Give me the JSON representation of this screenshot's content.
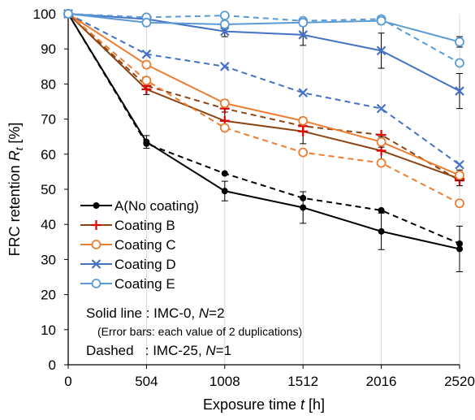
{
  "chart_data": {
    "type": "line",
    "xlabel": "Exposure time",
    "xlabel_var": "t",
    "xlabel_unit": "[h]",
    "ylabel": "FRC retention",
    "ylabel_var": "R",
    "ylabel_sub": "t",
    "ylabel_unit": "[%]",
    "xlim": [
      0,
      2520
    ],
    "ylim": [
      0,
      100
    ],
    "x": [
      0,
      504,
      1008,
      1512,
      2016,
      2520
    ],
    "x_tick_labels": [
      "0",
      "504",
      "1008",
      "1512",
      "2016",
      "2520"
    ],
    "y_ticks": [
      0,
      10,
      20,
      30,
      40,
      50,
      60,
      70,
      80,
      90,
      100
    ],
    "grid": "vertical",
    "legend_position": "lower-left",
    "series": [
      {
        "name": "A(No coating)",
        "color": "#000000",
        "marker": "dot",
        "solid": [
          100,
          63.5,
          49.5,
          44.8,
          38.0,
          33.0
        ],
        "error": [
          0,
          1.8,
          2.8,
          4.5,
          5.2,
          6.5
        ],
        "dashed": [
          100,
          63.0,
          54.5,
          47.5,
          44.0,
          34.5
        ]
      },
      {
        "name": "Coating B",
        "color": "#8B4513",
        "marker": "plus",
        "solid": [
          100,
          78.5,
          69.5,
          66.5,
          61.0,
          53.0
        ],
        "error": [
          0,
          1.5,
          2.5,
          3.5,
          3.5,
          2.0
        ],
        "dashed": [
          100,
          79.5,
          73.0,
          68.0,
          65.5,
          52.5
        ]
      },
      {
        "name": "Coating C",
        "color": "#ED7D31",
        "marker": "circle",
        "solid": [
          100,
          85.5,
          74.5,
          69.5,
          63.5,
          54.0
        ],
        "error": [
          0,
          1.0,
          1.0,
          1.0,
          1.5,
          1.5
        ],
        "dashed": [
          100,
          81.0,
          67.5,
          60.5,
          57.5,
          46.0
        ]
      },
      {
        "name": "Coating D",
        "color": "#4472C4",
        "marker": "x",
        "solid": [
          100,
          98.5,
          95.0,
          94.0,
          89.5,
          78.0
        ],
        "error": [
          0,
          1.0,
          1.5,
          3.0,
          5.0,
          5.0
        ],
        "dashed": [
          100,
          88.5,
          85.0,
          77.5,
          73.0,
          57.0
        ]
      },
      {
        "name": "Coating E",
        "color": "#5B9BD5",
        "marker": "circle",
        "solid": [
          100,
          97.5,
          97.0,
          97.5,
          98.0,
          92.0
        ],
        "error": [
          0,
          1.0,
          1.0,
          1.0,
          1.0,
          1.5
        ],
        "dashed": [
          100,
          99.0,
          99.5,
          98.0,
          98.5,
          86.0
        ]
      }
    ],
    "notes": {
      "solid_prefix": "Solid line : IMC-0, ",
      "solid_n_var": "N",
      "solid_n_val": "=2",
      "error_note": "(Error bars: each value of 2 duplications)",
      "dashed_prefix": "Dashed   : IMC-25, ",
      "dashed_n_var": "N",
      "dashed_n_val": "=1"
    }
  }
}
